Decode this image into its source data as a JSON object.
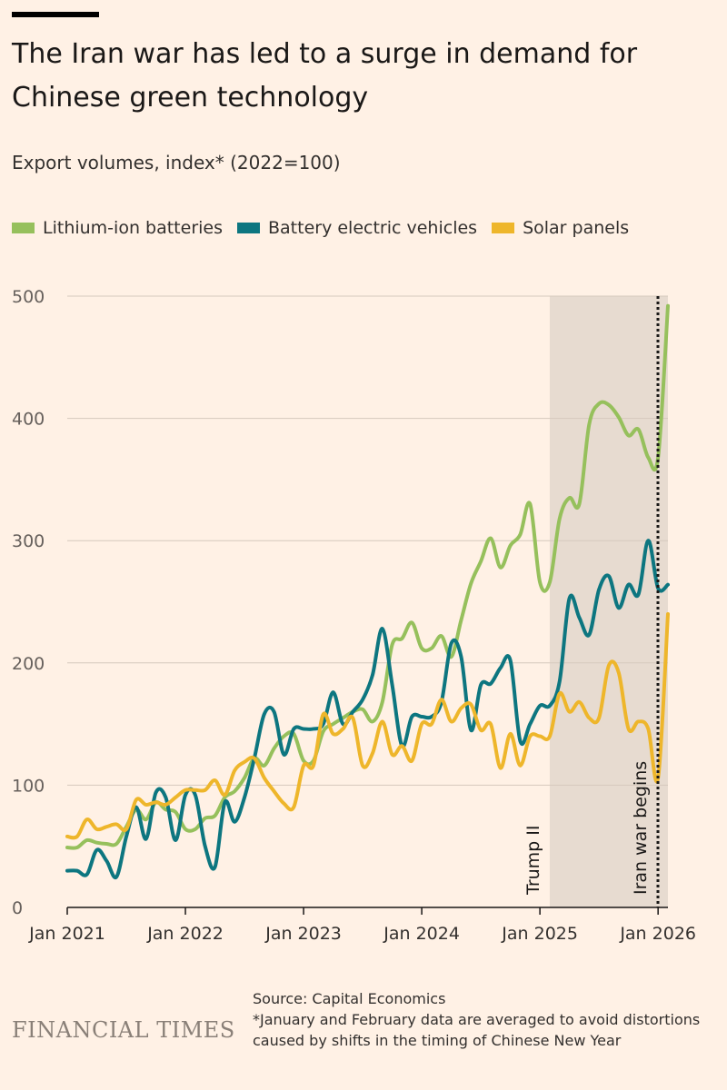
{
  "header": {
    "title": "The Iran war has led to a surge in demand for Chinese green technology",
    "subtitle": "Export volumes, index* (2022=100)"
  },
  "footer": {
    "brand": "FINANCIAL TIMES",
    "source": "Source: Capital Economics",
    "note": "*January and February data are averaged to avoid distortions caused by shifts in the timing of Chinese New Year"
  },
  "chart_data": {
    "type": "line",
    "ylim": [
      0,
      500
    ],
    "yticks": [
      0,
      100,
      200,
      300,
      400,
      500
    ],
    "xlim": [
      "2021-01",
      "2026-02"
    ],
    "xticks": [
      {
        "value": "2021-01",
        "label": "Jan 2021"
      },
      {
        "value": "2022-01",
        "label": "Jan 2022"
      },
      {
        "value": "2023-01",
        "label": "Jan 2023"
      },
      {
        "value": "2024-01",
        "label": "Jan 2024"
      },
      {
        "value": "2025-01",
        "label": "Jan 2025"
      },
      {
        "value": "2026-01",
        "label": "Jan 2026"
      }
    ],
    "grid": true,
    "legend_position": "top-left",
    "shaded_period": {
      "start": "2025-02",
      "end": "2026-02",
      "color": "#e7dbd0",
      "label": "Trump II"
    },
    "event_line": {
      "date": "2026-02",
      "label": "Iran war begins"
    },
    "series": [
      {
        "name": "Lithium-ion batteries",
        "color": "#96c05c",
        "values": [
          [
            "2021-01",
            49
          ],
          [
            "2021-02",
            49
          ],
          [
            "2021-03",
            55
          ],
          [
            "2021-04",
            53
          ],
          [
            "2021-05",
            52
          ],
          [
            "2021-06",
            52
          ],
          [
            "2021-07",
            66
          ],
          [
            "2021-08",
            80
          ],
          [
            "2021-09",
            72
          ],
          [
            "2021-10",
            86
          ],
          [
            "2021-11",
            80
          ],
          [
            "2021-12",
            78
          ],
          [
            "2022-01",
            64
          ],
          [
            "2022-02",
            64
          ],
          [
            "2022-03",
            73
          ],
          [
            "2022-04",
            75
          ],
          [
            "2022-05",
            90
          ],
          [
            "2022-06",
            95
          ],
          [
            "2022-07",
            106
          ],
          [
            "2022-08",
            122
          ],
          [
            "2022-09",
            116
          ],
          [
            "2022-10",
            130
          ],
          [
            "2022-11",
            140
          ],
          [
            "2022-12",
            142
          ],
          [
            "2023-01",
            120
          ],
          [
            "2023-02",
            120
          ],
          [
            "2023-03",
            144
          ],
          [
            "2023-04",
            150
          ],
          [
            "2023-05",
            155
          ],
          [
            "2023-06",
            160
          ],
          [
            "2023-07",
            162
          ],
          [
            "2023-08",
            152
          ],
          [
            "2023-09",
            168
          ],
          [
            "2023-10",
            215
          ],
          [
            "2023-11",
            220
          ],
          [
            "2023-12",
            233
          ],
          [
            "2024-01",
            212
          ],
          [
            "2024-02",
            212
          ],
          [
            "2024-03",
            222
          ],
          [
            "2024-04",
            205
          ],
          [
            "2024-05",
            235
          ],
          [
            "2024-06",
            265
          ],
          [
            "2024-07",
            283
          ],
          [
            "2024-08",
            302
          ],
          [
            "2024-09",
            278
          ],
          [
            "2024-10",
            296
          ],
          [
            "2024-11",
            305
          ],
          [
            "2024-12",
            330
          ],
          [
            "2025-01",
            266
          ],
          [
            "2025-02",
            266
          ],
          [
            "2025-03",
            318
          ],
          [
            "2025-04",
            335
          ],
          [
            "2025-05",
            330
          ],
          [
            "2025-06",
            395
          ],
          [
            "2025-07",
            412
          ],
          [
            "2025-08",
            411
          ],
          [
            "2025-09",
            401
          ],
          [
            "2025-10",
            386
          ],
          [
            "2025-11",
            391
          ],
          [
            "2025-12",
            368
          ],
          [
            "2026-01",
            368
          ],
          [
            "2026-02",
            492
          ]
        ]
      },
      {
        "name": "Battery electric vehicles",
        "color": "#0d7680",
        "values": [
          [
            "2021-01",
            30
          ],
          [
            "2021-02",
            30
          ],
          [
            "2021-03",
            27
          ],
          [
            "2021-04",
            47
          ],
          [
            "2021-05",
            38
          ],
          [
            "2021-06",
            25
          ],
          [
            "2021-07",
            58
          ],
          [
            "2021-08",
            82
          ],
          [
            "2021-09",
            56
          ],
          [
            "2021-10",
            94
          ],
          [
            "2021-11",
            90
          ],
          [
            "2021-12",
            55
          ],
          [
            "2022-01",
            92
          ],
          [
            "2022-02",
            92
          ],
          [
            "2022-03",
            50
          ],
          [
            "2022-04",
            33
          ],
          [
            "2022-05",
            86
          ],
          [
            "2022-06",
            70
          ],
          [
            "2022-07",
            90
          ],
          [
            "2022-08",
            122
          ],
          [
            "2022-09",
            158
          ],
          [
            "2022-10",
            160
          ],
          [
            "2022-11",
            125
          ],
          [
            "2022-12",
            146
          ],
          [
            "2023-01",
            146
          ],
          [
            "2023-02",
            146
          ],
          [
            "2023-03",
            150
          ],
          [
            "2023-04",
            176
          ],
          [
            "2023-05",
            150
          ],
          [
            "2023-06",
            160
          ],
          [
            "2023-07",
            170
          ],
          [
            "2023-08",
            190
          ],
          [
            "2023-09",
            228
          ],
          [
            "2023-10",
            182
          ],
          [
            "2023-11",
            132
          ],
          [
            "2023-12",
            156
          ],
          [
            "2024-01",
            156
          ],
          [
            "2024-02",
            156
          ],
          [
            "2024-03",
            168
          ],
          [
            "2024-04",
            216
          ],
          [
            "2024-05",
            205
          ],
          [
            "2024-06",
            145
          ],
          [
            "2024-07",
            182
          ],
          [
            "2024-08",
            183
          ],
          [
            "2024-09",
            196
          ],
          [
            "2024-10",
            202
          ],
          [
            "2024-11",
            136
          ],
          [
            "2024-12",
            150
          ],
          [
            "2025-01",
            165
          ],
          [
            "2025-02",
            165
          ],
          [
            "2025-03",
            185
          ],
          [
            "2025-04",
            253
          ],
          [
            "2025-05",
            237
          ],
          [
            "2025-06",
            223
          ],
          [
            "2025-07",
            260
          ],
          [
            "2025-08",
            271
          ],
          [
            "2025-09",
            245
          ],
          [
            "2025-10",
            264
          ],
          [
            "2025-11",
            256
          ],
          [
            "2025-12",
            300
          ],
          [
            "2026-01",
            261
          ],
          [
            "2026-02",
            264
          ]
        ]
      },
      {
        "name": "Solar panels",
        "color": "#eeb62b",
        "values": [
          [
            "2021-01",
            58
          ],
          [
            "2021-02",
            58
          ],
          [
            "2021-03",
            72
          ],
          [
            "2021-04",
            64
          ],
          [
            "2021-05",
            66
          ],
          [
            "2021-06",
            68
          ],
          [
            "2021-07",
            64
          ],
          [
            "2021-08",
            88
          ],
          [
            "2021-09",
            84
          ],
          [
            "2021-10",
            86
          ],
          [
            "2021-11",
            84
          ],
          [
            "2021-12",
            90
          ],
          [
            "2022-01",
            96
          ],
          [
            "2022-02",
            96
          ],
          [
            "2022-03",
            96
          ],
          [
            "2022-04",
            104
          ],
          [
            "2022-05",
            92
          ],
          [
            "2022-06",
            112
          ],
          [
            "2022-07",
            119
          ],
          [
            "2022-08",
            122
          ],
          [
            "2022-09",
            106
          ],
          [
            "2022-10",
            95
          ],
          [
            "2022-11",
            85
          ],
          [
            "2022-12",
            82
          ],
          [
            "2023-01",
            116
          ],
          [
            "2023-02",
            116
          ],
          [
            "2023-03",
            158
          ],
          [
            "2023-04",
            142
          ],
          [
            "2023-05",
            146
          ],
          [
            "2023-06",
            155
          ],
          [
            "2023-07",
            116
          ],
          [
            "2023-08",
            126
          ],
          [
            "2023-09",
            152
          ],
          [
            "2023-10",
            125
          ],
          [
            "2023-11",
            132
          ],
          [
            "2023-12",
            120
          ],
          [
            "2024-01",
            150
          ],
          [
            "2024-02",
            150
          ],
          [
            "2024-03",
            170
          ],
          [
            "2024-04",
            152
          ],
          [
            "2024-05",
            163
          ],
          [
            "2024-06",
            166
          ],
          [
            "2024-07",
            145
          ],
          [
            "2024-08",
            150
          ],
          [
            "2024-09",
            114
          ],
          [
            "2024-10",
            142
          ],
          [
            "2024-11",
            116
          ],
          [
            "2024-12",
            140
          ],
          [
            "2025-01",
            140
          ],
          [
            "2025-02",
            140
          ],
          [
            "2025-03",
            175
          ],
          [
            "2025-04",
            160
          ],
          [
            "2025-05",
            168
          ],
          [
            "2025-06",
            155
          ],
          [
            "2025-07",
            155
          ],
          [
            "2025-08",
            198
          ],
          [
            "2025-09",
            192
          ],
          [
            "2025-10",
            146
          ],
          [
            "2025-11",
            152
          ],
          [
            "2025-12",
            146
          ],
          [
            "2026-01",
            106
          ],
          [
            "2026-02",
            240
          ]
        ]
      }
    ]
  }
}
